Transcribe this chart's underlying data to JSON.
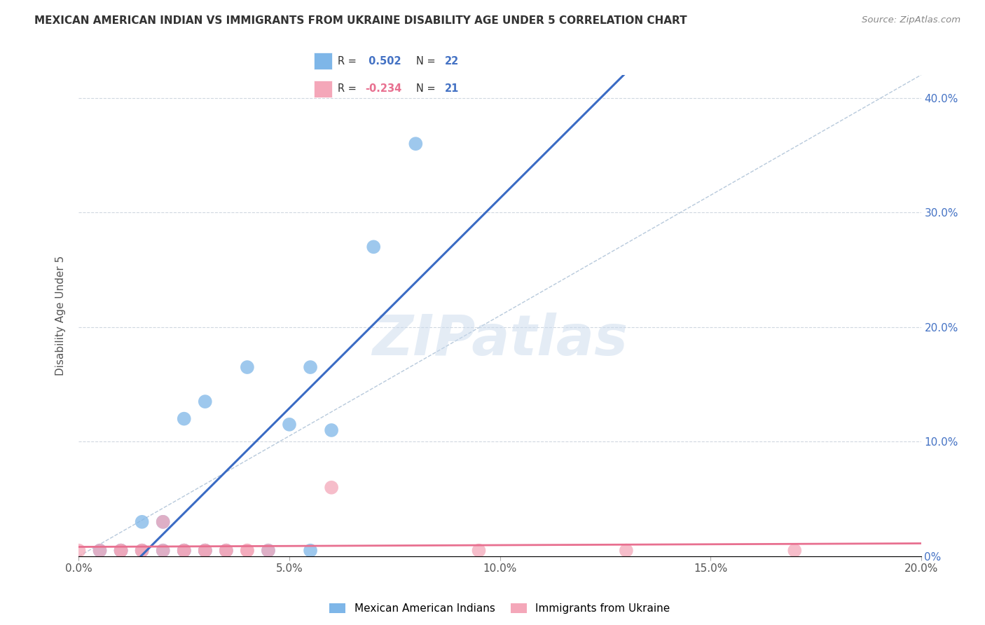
{
  "title": "MEXICAN AMERICAN INDIAN VS IMMIGRANTS FROM UKRAINE DISABILITY AGE UNDER 5 CORRELATION CHART",
  "source": "Source: ZipAtlas.com",
  "ylabel": "Disability Age Under 5",
  "right_ylabel_color": "#4472C4",
  "xlim": [
    0.0,
    0.2
  ],
  "ylim": [
    0.0,
    0.42
  ],
  "xticks": [
    0.0,
    0.05,
    0.1,
    0.15,
    0.2
  ],
  "xtick_labels": [
    "0.0%",
    "5.0%",
    "10.0%",
    "15.0%",
    "20.0%"
  ],
  "yticks": [
    0.0,
    0.1,
    0.2,
    0.3,
    0.4
  ],
  "ytick_labels": [
    "0%",
    "10.0%",
    "20.0%",
    "30.0%",
    "40.0%"
  ],
  "blue_label": "Mexican American Indians",
  "pink_label": "Immigrants from Ukraine",
  "blue_R": 0.502,
  "blue_N": 22,
  "pink_R": -0.234,
  "pink_N": 21,
  "blue_color": "#7EB6E8",
  "pink_color": "#F4A7B9",
  "blue_line_color": "#3A6BC4",
  "pink_line_color": "#E87090",
  "diag_line_color": "#B0C4D8",
  "blue_points_x": [
    0.005,
    0.01,
    0.01,
    0.015,
    0.015,
    0.02,
    0.02,
    0.025,
    0.025,
    0.025,
    0.03,
    0.03,
    0.03,
    0.035,
    0.04,
    0.045,
    0.05,
    0.055,
    0.055,
    0.06,
    0.07,
    0.08
  ],
  "blue_points_y": [
    0.005,
    0.005,
    0.005,
    0.005,
    0.03,
    0.005,
    0.03,
    0.005,
    0.005,
    0.12,
    0.005,
    0.135,
    0.005,
    0.005,
    0.165,
    0.005,
    0.115,
    0.005,
    0.165,
    0.11,
    0.27,
    0.36
  ],
  "pink_points_x": [
    0.0,
    0.005,
    0.01,
    0.01,
    0.015,
    0.015,
    0.02,
    0.02,
    0.025,
    0.025,
    0.03,
    0.03,
    0.035,
    0.035,
    0.04,
    0.04,
    0.045,
    0.06,
    0.095,
    0.13,
    0.17
  ],
  "pink_points_y": [
    0.005,
    0.005,
    0.005,
    0.005,
    0.005,
    0.005,
    0.005,
    0.03,
    0.005,
    0.005,
    0.005,
    0.005,
    0.005,
    0.005,
    0.005,
    0.005,
    0.005,
    0.06,
    0.005,
    0.005,
    0.005
  ],
  "watermark_text": "ZIPatlas",
  "background_color": "#FFFFFF",
  "grid_color": "#D0D8E0"
}
